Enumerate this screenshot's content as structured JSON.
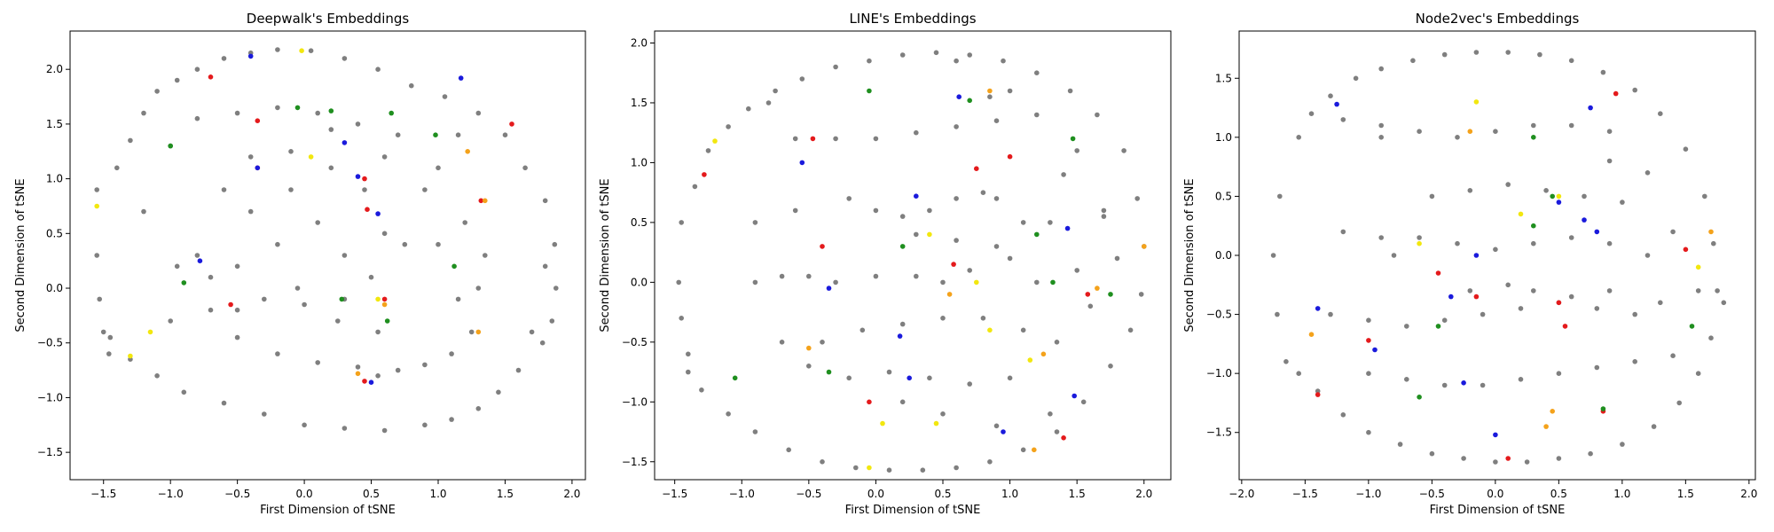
{
  "chart_data": [
    {
      "type": "scatter",
      "title": "Deepwalk's Embeddings",
      "xlabel": "First Dimension of tSNE",
      "ylabel": "Second Dimension of tSNE",
      "xlim": [
        -1.75,
        2.1
      ],
      "ylim": [
        -1.75,
        2.35
      ],
      "xticks": [
        -1.5,
        -1.0,
        -0.5,
        0.0,
        0.5,
        1.0,
        1.5,
        2.0
      ],
      "yticks": [
        -1.5,
        -1.0,
        -0.5,
        0.0,
        0.5,
        1.0,
        1.5,
        2.0
      ],
      "xtick_labels": [
        "−1.5",
        "−1.0",
        "−0.5",
        "0.0",
        "0.5",
        "1.0",
        "1.5",
        "2.0"
      ],
      "ytick_labels": [
        "−1.5",
        "−1.0",
        "−0.5",
        "0.0",
        "0.5",
        "1.0",
        "1.5",
        "2.0"
      ],
      "grid": false,
      "colors": {
        "gray": "#7f7f7f",
        "red": "#e41a1c",
        "blue": "#1a1adc",
        "green": "#1f8f1f",
        "yellow": "#f2e70f",
        "orange": "#f4a21b"
      },
      "series": [
        {
          "color": "gray",
          "x": [
            -1.55,
            -1.55,
            -1.53,
            -1.5,
            -1.46,
            -1.4,
            -1.3,
            -1.2,
            -1.1,
            -0.95,
            -0.8,
            -0.6,
            -0.4,
            -0.2,
            0.05,
            0.3,
            0.55,
            0.8,
            1.05,
            1.3,
            1.5,
            1.65,
            1.8,
            1.87,
            1.88,
            1.85,
            1.78,
            1.6,
            1.45,
            1.3,
            1.1,
            0.9,
            0.6,
            0.3,
            0.0,
            -0.3,
            -0.6,
            -0.9,
            -1.1,
            -1.3,
            -1.45,
            -1.2,
            -1.0,
            -0.8,
            -0.5,
            -0.2,
            0.1,
            0.4,
            0.7,
            1.0,
            1.2,
            1.3,
            1.25,
            1.1,
            0.9,
            0.7,
            0.4,
            0.1,
            -0.2,
            -0.5,
            -0.7,
            -0.8,
            -0.6,
            -0.4,
            -0.1,
            0.2,
            0.45,
            0.6,
            0.5,
            0.3,
            0.0,
            -0.3,
            -0.2,
            0.1,
            0.3,
            -0.4,
            -0.5,
            0.9,
            1.0,
            1.15,
            -0.95,
            -0.7,
            -0.5,
            0.25,
            0.55,
            -0.1,
            0.75,
            1.35,
            -1.0,
            0.2,
            0.6,
            1.8,
            1.7,
            -0.05,
            0.55,
            1.15
          ],
          "y": [
            0.9,
            0.3,
            -0.1,
            -0.4,
            -0.6,
            1.1,
            1.35,
            1.6,
            1.8,
            1.9,
            2.0,
            2.1,
            2.15,
            2.18,
            2.17,
            2.1,
            2.0,
            1.85,
            1.75,
            1.6,
            1.4,
            1.1,
            0.8,
            0.4,
            0.0,
            -0.3,
            -0.5,
            -0.75,
            -0.95,
            -1.1,
            -1.2,
            -1.25,
            -1.3,
            -1.28,
            -1.25,
            -1.15,
            -1.05,
            -0.95,
            -0.8,
            -0.65,
            -0.45,
            0.7,
            1.3,
            1.55,
            1.6,
            1.65,
            1.6,
            1.5,
            1.4,
            1.1,
            0.6,
            0.0,
            -0.4,
            -0.6,
            -0.7,
            -0.75,
            -0.72,
            -0.68,
            -0.6,
            -0.45,
            -0.2,
            0.3,
            0.9,
            1.2,
            1.25,
            1.1,
            0.9,
            0.5,
            0.1,
            -0.1,
            -0.15,
            -0.1,
            0.4,
            0.6,
            0.3,
            0.7,
            0.2,
            0.9,
            0.4,
            -0.1,
            0.2,
            0.1,
            -0.2,
            -0.3,
            -0.4,
            0.9,
            0.4,
            0.3,
            -0.3,
            1.45,
            1.2,
            0.2,
            -0.4,
            0.0,
            -0.8,
            1.4
          ]
        },
        {
          "color": "red",
          "x": [
            -0.7,
            -0.35,
            0.45,
            1.32,
            0.47,
            -0.55,
            0.6,
            1.55,
            0.45,
            -0.35
          ],
          "y": [
            1.93,
            1.53,
            1.0,
            0.8,
            0.72,
            -0.15,
            -0.1,
            1.5,
            -0.85,
            1.1
          ]
        },
        {
          "color": "blue",
          "x": [
            -0.4,
            0.3,
            0.4,
            1.17,
            -0.78,
            0.5,
            -0.35,
            0.55
          ],
          "y": [
            2.12,
            1.33,
            1.02,
            1.92,
            0.25,
            -0.86,
            1.1,
            0.68
          ]
        },
        {
          "color": "green",
          "x": [
            -1.0,
            0.65,
            0.98,
            -0.05,
            0.28,
            1.12,
            0.62,
            -0.9,
            0.2
          ],
          "y": [
            1.3,
            1.6,
            1.4,
            1.65,
            -0.1,
            0.2,
            -0.3,
            0.05,
            1.62
          ]
        },
        {
          "color": "yellow",
          "x": [
            -0.02,
            0.05,
            -1.3,
            -1.55,
            0.55,
            -1.15
          ],
          "y": [
            2.17,
            1.2,
            -0.62,
            0.75,
            -0.1,
            -0.4
          ]
        },
        {
          "color": "orange",
          "x": [
            1.22,
            1.3,
            0.4,
            1.35,
            0.6
          ],
          "y": [
            1.25,
            -0.4,
            -0.78,
            0.8,
            -0.15
          ]
        }
      ]
    },
    {
      "type": "scatter",
      "title": "LINE's Embeddings",
      "xlabel": "First Dimension of tSNE",
      "ylabel": "Second Dimension of tSNE",
      "xlim": [
        -1.65,
        2.2
      ],
      "ylim": [
        -1.65,
        2.1
      ],
      "xticks": [
        -1.5,
        -1.0,
        -0.5,
        0.0,
        0.5,
        1.0,
        1.5,
        2.0
      ],
      "yticks": [
        -1.5,
        -1.0,
        -0.5,
        0.0,
        0.5,
        1.0,
        1.5,
        2.0
      ],
      "xtick_labels": [
        "−1.5",
        "−1.0",
        "−0.5",
        "0.0",
        "0.5",
        "1.0",
        "1.5",
        "2.0"
      ],
      "ytick_labels": [
        "−1.5",
        "−1.0",
        "−0.5",
        "0.0",
        "0.5",
        "1.0",
        "1.5",
        "2.0"
      ],
      "grid": false,
      "colors": {
        "gray": "#7f7f7f",
        "red": "#e41a1c",
        "blue": "#1a1adc",
        "green": "#1f8f1f",
        "yellow": "#f2e70f",
        "orange": "#f4a21b"
      },
      "series": [
        {
          "color": "gray",
          "x": [
            -1.45,
            -1.47,
            -1.45,
            -1.4,
            -1.35,
            -1.25,
            -1.1,
            -0.95,
            -0.75,
            -0.55,
            -0.3,
            -0.05,
            0.2,
            0.45,
            0.7,
            0.95,
            1.2,
            1.45,
            1.65,
            1.85,
            1.95,
            2.0,
            1.98,
            1.9,
            1.75,
            1.55,
            1.35,
            1.1,
            0.85,
            0.6,
            0.35,
            0.1,
            -0.15,
            -0.4,
            -0.65,
            -0.9,
            -1.1,
            -1.3,
            -1.4,
            -0.8,
            -0.6,
            -0.3,
            0.0,
            0.3,
            0.6,
            0.9,
            1.2,
            1.5,
            1.7,
            1.8,
            -0.2,
            0.0,
            0.2,
            0.4,
            0.6,
            0.8,
            0.9,
            1.3,
            1.5,
            1.6,
            -0.9,
            -0.7,
            -0.5,
            -0.3,
            0.0,
            0.3,
            0.5,
            0.7,
            1.0,
            1.2,
            -0.4,
            -0.1,
            0.2,
            0.5,
            0.8,
            1.1,
            1.35,
            1.0,
            0.7,
            0.4,
            0.1,
            -0.2,
            -0.5,
            -0.7,
            0.3,
            0.6,
            0.9,
            1.1,
            1.4,
            1.7,
            0.2,
            0.5,
            0.9,
            1.3,
            0.6,
            0.85,
            1.0,
            -0.9,
            -0.6
          ],
          "y": [
            0.5,
            0.0,
            -0.3,
            -0.6,
            0.8,
            1.1,
            1.3,
            1.45,
            1.6,
            1.7,
            1.8,
            1.85,
            1.9,
            1.92,
            1.9,
            1.85,
            1.75,
            1.6,
            1.4,
            1.1,
            0.7,
            0.3,
            -0.1,
            -0.4,
            -0.7,
            -1.0,
            -1.25,
            -1.4,
            -1.5,
            -1.55,
            -1.57,
            -1.57,
            -1.55,
            -1.5,
            -1.4,
            -1.25,
            -1.1,
            -0.9,
            -0.75,
            1.5,
            1.2,
            1.2,
            1.2,
            1.25,
            1.3,
            1.35,
            1.4,
            1.1,
            0.6,
            0.2,
            0.7,
            0.6,
            0.55,
            0.6,
            0.7,
            0.75,
            0.7,
            0.5,
            0.1,
            -0.2,
            0.0,
            0.05,
            0.05,
            0.0,
            0.05,
            0.05,
            0.0,
            0.1,
            0.2,
            0.0,
            -0.5,
            -0.4,
            -0.35,
            -0.3,
            -0.3,
            -0.4,
            -0.5,
            -0.8,
            -0.85,
            -0.8,
            -0.75,
            -0.8,
            -0.7,
            -0.5,
            0.4,
            0.35,
            0.3,
            0.5,
            0.9,
            0.55,
            -1.0,
            -1.1,
            -1.2,
            -1.1,
            1.85,
            1.55,
            1.6,
            0.5,
            0.6
          ]
        },
        {
          "color": "red",
          "x": [
            -1.28,
            -0.47,
            0.75,
            1.58,
            -0.4,
            1.0,
            -0.05,
            0.58,
            1.4
          ],
          "y": [
            0.9,
            1.2,
            0.95,
            -0.1,
            0.3,
            1.05,
            -1.0,
            0.15,
            -1.3
          ]
        },
        {
          "color": "blue",
          "x": [
            -0.55,
            0.3,
            0.62,
            -0.35,
            1.43,
            0.18,
            0.25,
            1.48,
            0.95
          ],
          "y": [
            1.0,
            0.72,
            1.55,
            -0.05,
            0.45,
            -0.45,
            -0.8,
            -0.95,
            -1.25
          ]
        },
        {
          "color": "green",
          "x": [
            -0.05,
            1.2,
            1.47,
            -1.05,
            0.7,
            1.75,
            -0.35,
            1.32,
            0.2
          ],
          "y": [
            1.6,
            0.4,
            1.2,
            -0.8,
            1.52,
            -0.1,
            -0.75,
            0.0,
            0.3
          ]
        },
        {
          "color": "yellow",
          "x": [
            -1.2,
            0.4,
            0.75,
            0.05,
            1.15,
            0.85,
            -0.05,
            0.45
          ],
          "y": [
            1.18,
            0.4,
            0.0,
            -1.18,
            -0.65,
            -0.4,
            -1.55,
            -1.18
          ]
        },
        {
          "color": "orange",
          "x": [
            0.85,
            1.25,
            1.65,
            0.55,
            2.0,
            1.18,
            -0.5
          ],
          "y": [
            1.6,
            -0.6,
            -0.05,
            -0.1,
            0.3,
            -1.4,
            -0.55
          ]
        }
      ]
    },
    {
      "type": "scatter",
      "title": "Node2vec's Embeddings",
      "xlabel": "First Dimension of tSNE",
      "ylabel": "Second Dimension of tSNE",
      "xlim": [
        -2.02,
        2.05
      ],
      "ylim": [
        -1.9,
        1.9
      ],
      "xticks": [
        -2.0,
        -1.5,
        -1.0,
        -0.5,
        0.0,
        0.5,
        1.0,
        1.5,
        2.0
      ],
      "yticks": [
        -1.5,
        -1.0,
        -0.5,
        0.0,
        0.5,
        1.0,
        1.5
      ],
      "xtick_labels": [
        "−2.0",
        "−1.5",
        "−1.0",
        "−0.5",
        "0.0",
        "0.5",
        "1.0",
        "1.5",
        "2.0"
      ],
      "ytick_labels": [
        "−1.5",
        "−1.0",
        "−0.5",
        "0.0",
        "0.5",
        "1.0",
        "1.5"
      ],
      "grid": false,
      "colors": {
        "gray": "#7f7f7f",
        "red": "#e41a1c",
        "blue": "#1a1adc",
        "green": "#1f8f1f",
        "yellow": "#f2e70f",
        "orange": "#f4a21b"
      },
      "series": [
        {
          "color": "gray",
          "x": [
            -1.7,
            -1.75,
            -1.72,
            -1.65,
            -1.55,
            -1.45,
            -1.3,
            -1.1,
            -0.9,
            -0.65,
            -0.4,
            -0.15,
            0.1,
            0.35,
            0.6,
            0.85,
            1.1,
            1.3,
            1.5,
            1.65,
            1.72,
            1.75,
            1.7,
            1.6,
            1.45,
            1.25,
            1.0,
            0.75,
            0.5,
            0.25,
            0.0,
            -0.25,
            -0.5,
            -0.75,
            -1.0,
            -1.2,
            -1.4,
            -1.55,
            -1.2,
            -0.9,
            -0.6,
            -0.3,
            0.0,
            0.3,
            0.6,
            0.9,
            1.2,
            1.4,
            -1.3,
            -1.0,
            -0.7,
            -0.4,
            -0.1,
            0.2,
            0.5,
            0.8,
            1.1,
            1.3,
            -0.9,
            -0.6,
            -0.3,
            0.0,
            0.3,
            0.6,
            0.9,
            1.2,
            -0.5,
            -0.2,
            0.1,
            0.4,
            0.7,
            1.0,
            -1.0,
            -0.7,
            -0.4,
            -0.1,
            0.2,
            0.5,
            0.8,
            1.1,
            1.4,
            -0.2,
            0.1,
            0.3,
            0.6,
            0.9,
            -1.2,
            -0.8,
            1.6,
            1.8,
            -0.9,
            0.9
          ],
          "y": [
            0.5,
            0.0,
            -0.5,
            -0.9,
            1.0,
            1.2,
            1.35,
            1.5,
            1.58,
            1.65,
            1.7,
            1.72,
            1.72,
            1.7,
            1.65,
            1.55,
            1.4,
            1.2,
            0.9,
            0.5,
            0.1,
            -0.3,
            -0.7,
            -1.0,
            -1.25,
            -1.45,
            -1.6,
            -1.68,
            -1.72,
            -1.75,
            -1.75,
            -1.72,
            -1.68,
            -1.6,
            -1.5,
            -1.35,
            -1.15,
            -1.0,
            1.15,
            1.1,
            1.05,
            1.0,
            1.05,
            1.1,
            1.1,
            1.05,
            0.7,
            0.2,
            -0.5,
            -0.55,
            -0.6,
            -0.55,
            -0.5,
            -0.45,
            -0.4,
            -0.45,
            -0.5,
            -0.4,
            0.15,
            0.15,
            0.1,
            0.05,
            0.1,
            0.15,
            0.1,
            0.0,
            0.5,
            0.55,
            0.6,
            0.55,
            0.5,
            0.45,
            -1.0,
            -1.05,
            -1.1,
            -1.1,
            -1.05,
            -1.0,
            -0.95,
            -0.9,
            -0.85,
            -0.3,
            -0.25,
            -0.3,
            -0.35,
            -0.3,
            0.2,
            0.0,
            -0.3,
            -0.4,
            1.0,
            0.8
          ]
        },
        {
          "color": "red",
          "x": [
            0.95,
            -0.45,
            -0.15,
            0.55,
            1.5,
            -1.0,
            0.1,
            0.85,
            -1.4,
            0.5
          ],
          "y": [
            1.37,
            -0.15,
            -0.35,
            -0.6,
            0.05,
            -0.72,
            -1.72,
            -1.32,
            -1.18,
            -0.4
          ]
        },
        {
          "color": "blue",
          "x": [
            -1.25,
            0.75,
            0.5,
            -0.35,
            -1.4,
            0.8,
            -0.15,
            0.0,
            -0.95,
            -0.25,
            0.7
          ],
          "y": [
            1.28,
            1.25,
            0.45,
            -0.35,
            -0.45,
            0.2,
            0.0,
            -1.52,
            -0.8,
            -1.08,
            0.3
          ]
        },
        {
          "color": "green",
          "x": [
            0.3,
            0.45,
            -0.45,
            1.55,
            -0.6,
            0.85,
            0.3
          ],
          "y": [
            1.0,
            0.5,
            -0.6,
            -0.6,
            -1.2,
            -1.3,
            0.25
          ]
        },
        {
          "color": "yellow",
          "x": [
            -0.15,
            0.2,
            -0.6,
            1.6,
            0.5
          ],
          "y": [
            1.3,
            0.35,
            0.1,
            -0.1,
            0.5
          ]
        },
        {
          "color": "orange",
          "x": [
            -1.45,
            0.4,
            0.45,
            1.7,
            -0.2
          ],
          "y": [
            -0.67,
            -1.45,
            -1.32,
            0.2,
            1.05
          ]
        }
      ]
    }
  ]
}
